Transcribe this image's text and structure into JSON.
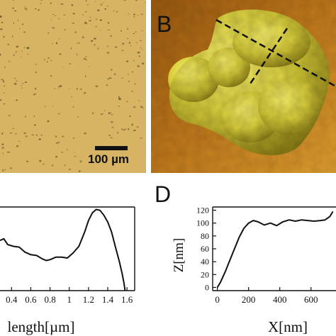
{
  "panel_a": {
    "scale_bar_label": "100 µm",
    "colors": {
      "background": "#d6b463",
      "debris": "#6b5a2a"
    }
  },
  "panel_b": {
    "letter": "B",
    "colors": {
      "background": "#b86a10",
      "surface_highlight": "#f2ea60",
      "surface_shadow": "#8a7d16",
      "profile_line": "#111111"
    }
  },
  "panel_d": {
    "letter": "D"
  },
  "chart_data": [
    {
      "type": "line",
      "xlabel": "length[µm]",
      "ylabel": "",
      "x_ticks": [
        "0.4",
        "0.6",
        "0.8",
        "1",
        "1.2",
        "1.4",
        "1.6"
      ],
      "xlim": [
        0.28,
        1.68
      ],
      "ylim": [
        0,
        1
      ],
      "series": [
        {
          "x": [
            0.28,
            0.32,
            0.36,
            0.42,
            0.48,
            0.54,
            0.6,
            0.66,
            0.72,
            0.76,
            0.8,
            0.86,
            0.92,
            0.98,
            1.04,
            1.1,
            1.16,
            1.2,
            1.24,
            1.28,
            1.32,
            1.36,
            1.4,
            1.44,
            1.48,
            1.52,
            1.55,
            1.57,
            1.58
          ],
          "y": [
            0.6,
            0.62,
            0.55,
            0.53,
            0.52,
            0.46,
            0.43,
            0.42,
            0.38,
            0.36,
            0.37,
            0.4,
            0.4,
            0.39,
            0.45,
            0.53,
            0.7,
            0.84,
            0.93,
            0.97,
            0.96,
            0.9,
            0.82,
            0.7,
            0.52,
            0.35,
            0.2,
            0.08,
            0.0
          ]
        }
      ]
    },
    {
      "type": "line",
      "xlabel": "X[nm]",
      "ylabel": "Z[nm]",
      "x_ticks": [
        "0",
        "200",
        "400",
        "600"
      ],
      "y_ticks": [
        "0",
        "20",
        "40",
        "60",
        "80",
        "100",
        "120"
      ],
      "xlim": [
        -30,
        760
      ],
      "ylim": [
        -5,
        125
      ],
      "series": [
        {
          "x": [
            0,
            20,
            50,
            80,
            110,
            140,
            170,
            200,
            230,
            260,
            300,
            340,
            380,
            420,
            460,
            500,
            540,
            580,
            620,
            660,
            690,
            720,
            740
          ],
          "y": [
            0,
            8,
            24,
            42,
            60,
            78,
            92,
            100,
            104,
            102,
            97,
            100,
            96,
            102,
            105,
            103,
            105,
            104,
            103,
            104,
            105,
            110,
            118
          ]
        }
      ]
    }
  ]
}
